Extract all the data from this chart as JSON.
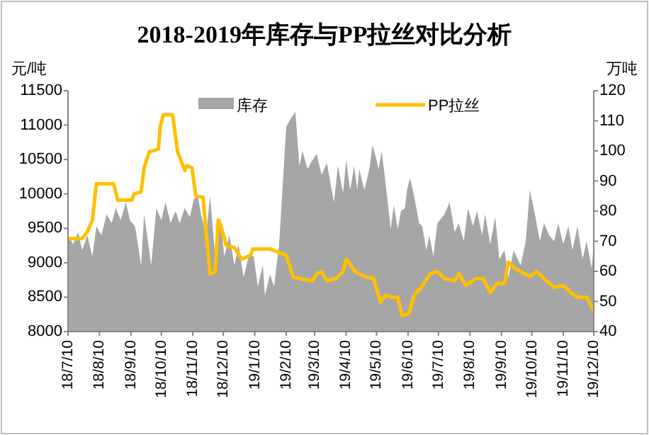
{
  "chart_data": {
    "type": "line",
    "title": "2018-2019年库存与PP拉丝对比分析",
    "ylabel": "元/吨",
    "y2label": "万吨",
    "legend": "top",
    "xlim": [
      "2018-07-10",
      "2019-12-10"
    ],
    "xticks": [
      {
        "value": "2018-07-10",
        "label": "18/7/10"
      },
      {
        "value": "2018-08-10",
        "label": "18/8/10"
      },
      {
        "value": "2018-09-10",
        "label": "18/9/10"
      },
      {
        "value": "2018-10-10",
        "label": "18/10/10"
      },
      {
        "value": "2018-11-10",
        "label": "18/11/10"
      },
      {
        "value": "2018-12-10",
        "label": "18/12/10"
      },
      {
        "value": "2019-01-10",
        "label": "19/1/10"
      },
      {
        "value": "2019-02-10",
        "label": "19/2/10"
      },
      {
        "value": "2019-03-10",
        "label": "19/3/10"
      },
      {
        "value": "2019-04-10",
        "label": "19/4/10"
      },
      {
        "value": "2019-05-10",
        "label": "19/5/10"
      },
      {
        "value": "2019-06-10",
        "label": "19/6/10"
      },
      {
        "value": "2019-07-10",
        "label": "19/7/10"
      },
      {
        "value": "2019-08-10",
        "label": "19/8/10"
      },
      {
        "value": "2019-09-10",
        "label": "19/9/10"
      },
      {
        "value": "2019-10-10",
        "label": "19/10/10"
      },
      {
        "value": "2019-11-10",
        "label": "19/11/10"
      },
      {
        "value": "2019-12-10",
        "label": "19/12/10"
      }
    ],
    "ylim": [
      8000,
      11500
    ],
    "yticks": [
      8000,
      8500,
      9000,
      9500,
      10000,
      10500,
      11000,
      11500
    ],
    "y2lim": [
      40,
      120
    ],
    "y2ticks": [
      40,
      50,
      60,
      70,
      80,
      90,
      100,
      110,
      120
    ],
    "series": [
      {
        "name": "库存",
        "type": "area",
        "axis": "y2",
        "color": "#a6a6a6",
        "x": [
          "2018-07-10",
          "2018-07-15",
          "2018-07-20",
          "2018-07-24",
          "2018-07-29",
          "2018-08-03",
          "2018-08-07",
          "2018-08-12",
          "2018-08-17",
          "2018-08-22",
          "2018-08-26",
          "2018-08-31",
          "2018-09-05",
          "2018-09-09",
          "2018-09-14",
          "2018-09-20",
          "2018-09-23",
          "2018-09-30",
          "2018-10-05",
          "2018-10-10",
          "2018-10-14",
          "2018-10-19",
          "2018-10-24",
          "2018-10-28",
          "2018-11-02",
          "2018-11-07",
          "2018-11-11",
          "2018-11-15",
          "2018-11-18",
          "2018-11-23",
          "2018-11-27",
          "2018-12-02",
          "2018-12-07",
          "2018-12-11",
          "2018-12-16",
          "2018-12-21",
          "2018-12-25",
          "2018-12-30",
          "2019-01-04",
          "2019-01-09",
          "2019-01-13",
          "2019-01-18",
          "2019-01-20",
          "2019-01-25",
          "2019-01-29",
          "2019-02-03",
          "2019-02-10",
          "2019-02-15",
          "2019-02-19",
          "2019-02-23",
          "2019-02-26",
          "2019-03-03",
          "2019-03-08",
          "2019-03-12",
          "2019-03-17",
          "2019-03-22",
          "2019-03-29",
          "2019-04-02",
          "2019-04-07",
          "2019-04-10",
          "2019-04-14",
          "2019-04-18",
          "2019-04-21",
          "2019-04-23",
          "2019-04-28",
          "2019-05-03",
          "2019-05-06",
          "2019-05-10",
          "2019-05-12",
          "2019-05-15",
          "2019-05-19",
          "2019-05-24",
          "2019-05-27",
          "2019-05-31",
          "2019-06-03",
          "2019-06-07",
          "2019-06-09",
          "2019-06-12",
          "2019-06-16",
          "2019-06-21",
          "2019-06-24",
          "2019-06-28",
          "2019-07-01",
          "2019-07-05",
          "2019-07-09",
          "2019-07-16",
          "2019-07-21",
          "2019-07-26",
          "2019-07-30",
          "2019-08-04",
          "2019-08-08",
          "2019-08-13",
          "2019-08-17",
          "2019-08-22",
          "2019-08-25",
          "2019-08-30",
          "2019-09-04",
          "2019-09-08",
          "2019-09-13",
          "2019-09-17",
          "2019-09-22",
          "2019-09-29",
          "2019-10-04",
          "2019-10-08",
          "2019-10-13",
          "2019-10-18",
          "2019-10-22",
          "2019-10-27",
          "2019-11-01",
          "2019-11-05",
          "2019-11-10",
          "2019-11-15",
          "2019-11-19",
          "2019-11-24",
          "2019-11-29",
          "2019-12-03",
          "2019-12-08",
          "2019-12-10"
        ],
        "values": [
          72,
          69,
          73,
          67,
          72,
          65,
          75,
          72,
          79,
          76,
          81,
          77,
          83,
          77,
          75,
          62,
          79,
          62,
          81,
          77,
          83,
          76,
          80,
          76,
          81,
          78,
          84,
          85,
          79,
          72,
          85,
          65,
          78,
          65,
          72,
          62,
          69,
          58,
          65,
          65,
          55,
          62,
          52,
          59,
          55,
          69,
          108,
          111,
          113,
          95,
          100,
          94,
          97,
          99,
          92,
          96,
          83,
          95,
          86,
          97,
          87,
          95,
          87,
          94,
          87,
          94,
          102,
          97,
          94,
          100,
          89,
          74,
          82,
          74,
          80,
          81,
          87,
          91,
          85,
          76,
          75,
          67,
          72,
          65,
          76,
          79,
          83,
          73,
          76,
          70,
          81,
          75,
          80,
          72,
          79,
          69,
          78,
          64,
          67,
          58,
          67,
          62,
          70,
          87,
          79,
          70,
          76,
          72,
          70,
          76,
          69,
          75,
          67,
          75,
          64,
          70,
          61,
          69
        ]
      },
      {
        "name": "PP拉丝",
        "type": "line",
        "color": "#ffc000",
        "x": [
          "2018-07-10",
          "2018-07-24",
          "2018-07-29",
          "2018-08-03",
          "2018-08-07",
          "2018-08-24",
          "2018-08-28",
          "2018-09-11",
          "2018-09-13",
          "2018-09-20",
          "2018-09-23",
          "2018-09-28",
          "2018-10-07",
          "2018-10-09",
          "2018-10-12",
          "2018-10-21",
          "2018-10-26",
          "2018-11-02",
          "2018-11-04",
          "2018-11-09",
          "2018-11-13",
          "2018-11-20",
          "2018-11-23",
          "2018-11-27",
          "2018-12-02",
          "2018-12-05",
          "2018-12-08",
          "2018-12-13",
          "2018-12-21",
          "2018-12-28",
          "2019-01-06",
          "2019-01-08",
          "2019-01-25",
          "2019-02-03",
          "2019-02-10",
          "2019-02-17",
          "2019-02-26",
          "2019-03-08",
          "2019-03-12",
          "2019-03-17",
          "2019-03-22",
          "2019-03-31",
          "2019-04-07",
          "2019-04-10",
          "2019-04-14",
          "2019-04-19",
          "2019-04-28",
          "2019-05-07",
          "2019-05-14",
          "2019-05-19",
          "2019-05-24",
          "2019-05-31",
          "2019-06-04",
          "2019-06-11",
          "2019-06-16",
          "2019-06-23",
          "2019-07-02",
          "2019-07-09",
          "2019-07-16",
          "2019-07-26",
          "2019-07-30",
          "2019-08-06",
          "2019-08-16",
          "2019-08-23",
          "2019-08-30",
          "2019-09-06",
          "2019-09-13",
          "2019-09-17",
          "2019-09-24",
          "2019-10-08",
          "2019-10-15",
          "2019-10-22",
          "2019-11-01",
          "2019-11-10",
          "2019-11-17",
          "2019-11-24",
          "2019-12-03",
          "2019-12-10"
        ],
        "values": [
          9350,
          9350,
          9450,
          9620,
          10150,
          10150,
          9910,
          9910,
          10000,
          10030,
          10380,
          10610,
          10650,
          10990,
          11150,
          11150,
          10610,
          10340,
          10410,
          10380,
          9970,
          9950,
          9450,
          8840,
          8870,
          9620,
          9520,
          9250,
          9220,
          9050,
          9110,
          9200,
          9200,
          9150,
          9110,
          8790,
          8760,
          8740,
          8840,
          8870,
          8740,
          8770,
          8870,
          9050,
          8980,
          8870,
          8800,
          8770,
          8430,
          8530,
          8500,
          8500,
          8230,
          8260,
          8530,
          8640,
          8840,
          8870,
          8770,
          8740,
          8840,
          8670,
          8770,
          8770,
          8570,
          8700,
          8700,
          9010,
          8910,
          8800,
          8870,
          8770,
          8640,
          8670,
          8570,
          8500,
          8500,
          8300
        ]
      }
    ]
  }
}
